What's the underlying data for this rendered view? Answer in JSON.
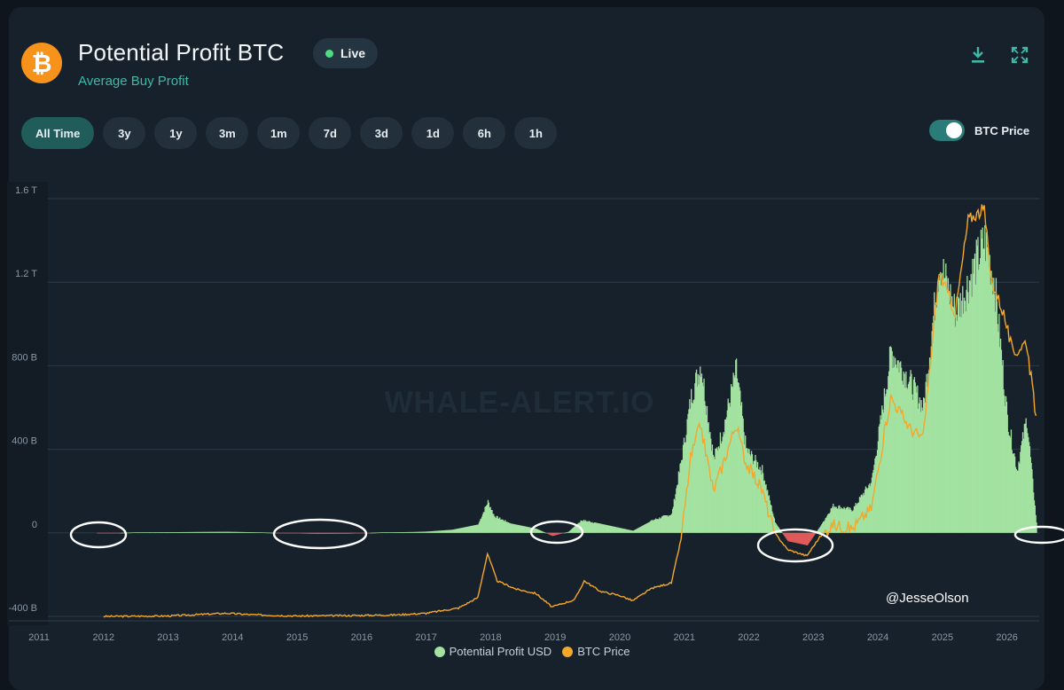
{
  "header": {
    "logo_glyph": "₿",
    "title": "Potential Profit BTC",
    "subtitle": "Average Buy Profit",
    "live_label": "Live"
  },
  "icons": {
    "download": "download-icon",
    "fullscreen": "fullscreen-icon"
  },
  "tabs": [
    {
      "label": "All Time",
      "active": true
    },
    {
      "label": "3y"
    },
    {
      "label": "1y"
    },
    {
      "label": "3m"
    },
    {
      "label": "1m"
    },
    {
      "label": "7d"
    },
    {
      "label": "3d"
    },
    {
      "label": "1d"
    },
    {
      "label": "6h"
    },
    {
      "label": "1h"
    }
  ],
  "toggle": {
    "label": "BTC Price",
    "on": true
  },
  "watermark": "WHALE-ALERT.IO",
  "credit": "@JesseOlson",
  "colors": {
    "profit": "#a3e2a0",
    "loss": "#e05a5a",
    "price": "#f4a72a",
    "accent": "#3fb8a8"
  },
  "chart_data": {
    "type": "area",
    "title": "Potential Profit BTC",
    "ylim": [
      -400,
      1600
    ],
    "ylabel_unit": "B USD",
    "yticks": [
      "-400 B",
      "0",
      "400 B",
      "800 B",
      "1.2 T",
      "1.6 T"
    ],
    "xticks": [
      "2011",
      "2012",
      "2013",
      "2014",
      "2015",
      "2016",
      "2017",
      "2018",
      "2019",
      "2020",
      "2021",
      "2022",
      "2023",
      "2024",
      "2025",
      "2026"
    ],
    "grid": true,
    "legend_position": "bottom",
    "series": [
      {
        "name": "Potential Profit USD",
        "kind": "area",
        "points": [
          [
            2011.9,
            -3
          ],
          [
            2012.5,
            2
          ],
          [
            2013.0,
            3
          ],
          [
            2013.9,
            5
          ],
          [
            2014.3,
            3
          ],
          [
            2014.9,
            -2
          ],
          [
            2015.3,
            -5
          ],
          [
            2015.8,
            -4
          ],
          [
            2016.3,
            2
          ],
          [
            2016.8,
            4
          ],
          [
            2017.0,
            6
          ],
          [
            2017.4,
            15
          ],
          [
            2017.8,
            40
          ],
          [
            2017.95,
            150
          ],
          [
            2018.05,
            80
          ],
          [
            2018.3,
            45
          ],
          [
            2018.7,
            20
          ],
          [
            2018.95,
            -15
          ],
          [
            2019.2,
            5
          ],
          [
            2019.4,
            60
          ],
          [
            2019.6,
            50
          ],
          [
            2019.9,
            30
          ],
          [
            2020.2,
            10
          ],
          [
            2020.5,
            60
          ],
          [
            2020.8,
            90
          ],
          [
            2020.95,
            350
          ],
          [
            2021.1,
            650
          ],
          [
            2021.25,
            810
          ],
          [
            2021.45,
            350
          ],
          [
            2021.6,
            500
          ],
          [
            2021.8,
            780
          ],
          [
            2021.95,
            400
          ],
          [
            2022.2,
            300
          ],
          [
            2022.4,
            50
          ],
          [
            2022.6,
            -40
          ],
          [
            2022.9,
            -60
          ],
          [
            2023.1,
            30
          ],
          [
            2023.3,
            130
          ],
          [
            2023.6,
            110
          ],
          [
            2023.9,
            250
          ],
          [
            2024.2,
            870
          ],
          [
            2024.5,
            720
          ],
          [
            2024.7,
            600
          ],
          [
            2024.95,
            1300
          ],
          [
            2025.2,
            1050
          ],
          [
            2025.4,
            1200
          ],
          [
            2025.65,
            1400
          ],
          [
            2025.8,
            1200
          ],
          [
            2026.0,
            550
          ],
          [
            2026.15,
            300
          ],
          [
            2026.3,
            550
          ],
          [
            2026.45,
            50
          ]
        ]
      },
      {
        "name": "BTC Price",
        "kind": "line",
        "points": [
          [
            2012.0,
            -400
          ],
          [
            2013.0,
            -398
          ],
          [
            2013.9,
            -385
          ],
          [
            2014.3,
            -392
          ],
          [
            2015.0,
            -398
          ],
          [
            2015.8,
            -396
          ],
          [
            2016.5,
            -393
          ],
          [
            2017.0,
            -385
          ],
          [
            2017.5,
            -360
          ],
          [
            2017.8,
            -310
          ],
          [
            2017.95,
            -100
          ],
          [
            2018.1,
            -230
          ],
          [
            2018.4,
            -270
          ],
          [
            2018.7,
            -290
          ],
          [
            2018.95,
            -355
          ],
          [
            2019.3,
            -320
          ],
          [
            2019.45,
            -230
          ],
          [
            2019.7,
            -280
          ],
          [
            2020.0,
            -300
          ],
          [
            2020.2,
            -325
          ],
          [
            2020.5,
            -265
          ],
          [
            2020.8,
            -240
          ],
          [
            2020.95,
            -30
          ],
          [
            2021.1,
            360
          ],
          [
            2021.25,
            520
          ],
          [
            2021.45,
            200
          ],
          [
            2021.6,
            330
          ],
          [
            2021.8,
            520
          ],
          [
            2021.95,
            340
          ],
          [
            2022.2,
            210
          ],
          [
            2022.4,
            0
          ],
          [
            2022.6,
            -80
          ],
          [
            2022.9,
            -110
          ],
          [
            2023.1,
            -20
          ],
          [
            2023.3,
            40
          ],
          [
            2023.6,
            20
          ],
          [
            2023.9,
            120
          ],
          [
            2024.2,
            650
          ],
          [
            2024.5,
            500
          ],
          [
            2024.7,
            450
          ],
          [
            2024.95,
            1250
          ],
          [
            2025.2,
            1050
          ],
          [
            2025.4,
            1500
          ],
          [
            2025.65,
            1550
          ],
          [
            2025.75,
            1220
          ],
          [
            2025.95,
            1050
          ],
          [
            2026.1,
            850
          ],
          [
            2026.3,
            920
          ],
          [
            2026.45,
            560
          ]
        ]
      }
    ]
  }
}
